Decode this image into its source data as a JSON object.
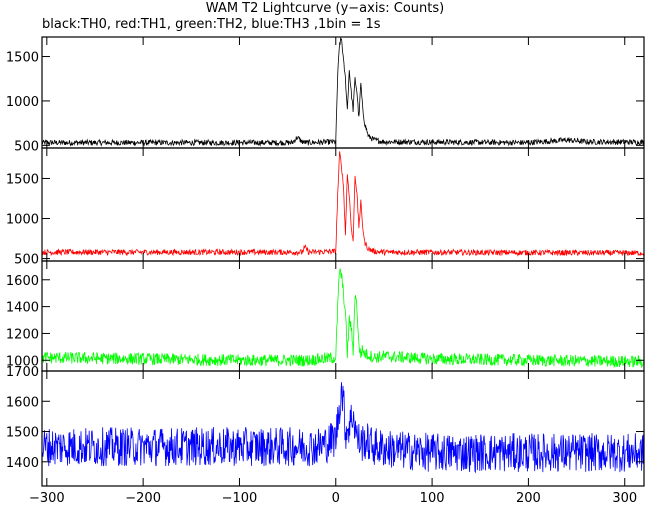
{
  "chart_data": {
    "type": "line",
    "title": "WAM T2 Lightcurve (y−axis: Counts)",
    "subtitle": "black:TH0, red:TH1, green:TH2, blue:TH3 ,1bin = 1s",
    "xlim": [
      -305,
      320
    ],
    "x_ticks": [
      -300,
      -200,
      -100,
      0,
      100,
      200,
      300
    ],
    "x_tick_labels": [
      "−300",
      "−200",
      "−100",
      "0",
      "100",
      "200",
      "300"
    ],
    "grid": false,
    "panels": [
      {
        "name": "TH0",
        "color": "#000000",
        "ylim": [
          470,
          1720
        ],
        "y_ticks": [
          500,
          1000,
          1500
        ],
        "y_tick_labels": [
          "500",
          "1000",
          "1500"
        ],
        "x": [
          -305,
          -45,
          -40,
          -35,
          -30,
          0,
          2,
          4,
          6,
          8,
          10,
          12,
          14,
          16,
          18,
          20,
          22,
          24,
          26,
          28,
          30,
          34,
          40,
          50,
          200,
          240,
          260,
          320
        ],
        "y": [
          530,
          530,
          590,
          540,
          530,
          540,
          1300,
          1650,
          1700,
          1450,
          1250,
          900,
          1350,
          1100,
          900,
          1250,
          1100,
          800,
          1200,
          900,
          750,
          600,
          560,
          540,
          530,
          560,
          540,
          535
        ]
      },
      {
        "name": "TH1",
        "color": "#ff0000",
        "ylim": [
          470,
          1880
        ],
        "y_ticks": [
          500,
          1000,
          1500
        ],
        "y_tick_labels": [
          "500",
          "1000",
          "1500"
        ],
        "x": [
          -305,
          -35,
          -32,
          -28,
          0,
          2,
          4,
          6,
          8,
          10,
          12,
          14,
          16,
          18,
          20,
          22,
          24,
          26,
          28,
          30,
          34,
          40,
          50,
          320
        ],
        "y": [
          580,
          580,
          640,
          580,
          590,
          1300,
          1820,
          1650,
          1400,
          800,
          1550,
          1300,
          900,
          700,
          1550,
          1300,
          900,
          1200,
          900,
          700,
          620,
          590,
          580,
          570
        ]
      },
      {
        "name": "TH2",
        "color": "#00ff00",
        "ylim": [
          920,
          1740
        ],
        "y_ticks": [
          1000,
          1200,
          1400,
          1600
        ],
        "y_tick_labels": [
          "1000",
          "1200",
          "1400",
          "1600"
        ],
        "x": [
          -305,
          -200,
          -100,
          -30,
          0,
          2,
          4,
          6,
          8,
          10,
          12,
          14,
          16,
          18,
          20,
          22,
          24,
          26,
          28,
          30,
          34,
          40,
          50,
          100,
          200,
          320
        ],
        "y": [
          1020,
          1010,
          1000,
          1000,
          1020,
          1400,
          1680,
          1620,
          1500,
          1350,
          1050,
          1300,
          1250,
          1050,
          1500,
          1400,
          1100,
          1050,
          1080,
          1050,
          1040,
          1020,
          1030,
          1010,
          1000,
          990
        ]
      },
      {
        "name": "TH3",
        "color": "#0000ff",
        "ylim": [
          1320,
          1700
        ],
        "y_ticks": [
          1400,
          1500,
          1600,
          1700
        ],
        "y_tick_labels": [
          "1400",
          "1500",
          "1600",
          "1700"
        ],
        "x": [
          -305,
          -100,
          -20,
          -10,
          0,
          3,
          6,
          8,
          10,
          14,
          18,
          22,
          26,
          30,
          40,
          60,
          100,
          200,
          320
        ],
        "y": [
          1450,
          1450,
          1450,
          1460,
          1480,
          1560,
          1640,
          1600,
          1500,
          1520,
          1560,
          1480,
          1460,
          1470,
          1450,
          1440,
          1430,
          1430,
          1430
        ]
      }
    ]
  }
}
